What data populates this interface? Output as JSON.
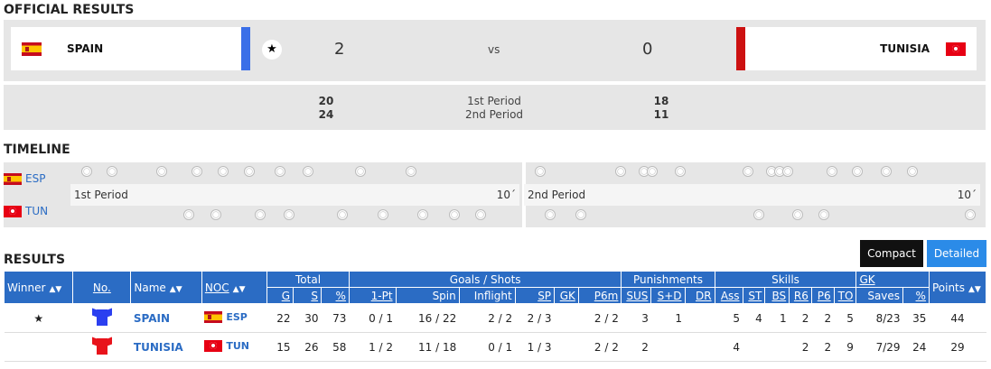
{
  "official_results": {
    "title": "OFFICIAL RESULTS",
    "home": {
      "name": "SPAIN",
      "score": "2",
      "bar_color": "#3a6fe8"
    },
    "away": {
      "name": "TUNISIA",
      "score": "0",
      "bar_color": "#cc1111"
    },
    "vs": "vs",
    "winner_icon": "star-icon",
    "periods": [
      {
        "label": "1st Period",
        "home": "20",
        "away": "18"
      },
      {
        "label": "2nd Period",
        "home": "24",
        "away": "11"
      }
    ]
  },
  "timeline": {
    "title": "TIMELINE",
    "home_code": "ESP",
    "away_code": "TUN",
    "period1_label": "1st Period",
    "period1_time": "10´",
    "period2_label": "2nd Period",
    "period2_time": "10´",
    "icon": "ball-icon"
  },
  "results": {
    "title": "RESULTS",
    "compact_label": "Compact",
    "detailed_label": "Detailed",
    "headers": {
      "winner": "Winner",
      "no": "No.",
      "name": "Name",
      "noc": "NOC",
      "total": "Total",
      "goals_shots": "Goals / Shots",
      "punishments": "Punishments",
      "skills": "Skills",
      "gk": "GK",
      "points": "Points",
      "g": "G",
      "s": "S",
      "pct": "%",
      "one_pt": "1-Pt",
      "spin": "Spin",
      "inflight": "Inflight",
      "sp": "SP",
      "gk2": "GK",
      "p6m": "P6m",
      "sus": "SUS",
      "sd": "S+D",
      "dr": "DR",
      "ass": "Ass",
      "st": "ST",
      "bs": "BS",
      "r6": "R6",
      "p6": "P6",
      "to": "TO",
      "saves": "Saves",
      "gkpct": "%"
    },
    "rows": [
      {
        "winner": "★",
        "jersey_color": "#2b3ff0",
        "name": "SPAIN",
        "noc": "ESP",
        "g": "22",
        "s": "30",
        "pct": "73",
        "one_pt": "0 / 1",
        "spin": "16 / 22",
        "inflight": "2 / 2",
        "sp": "2 / 3",
        "gk": "",
        "p6m": "2 / 2",
        "sus": "3",
        "sd": "1",
        "dr": "",
        "ass": "5",
        "st": "4",
        "bs": "1",
        "r6": "2",
        "p6": "2",
        "to": "5",
        "saves": "8/23",
        "gkpct": "35",
        "points": "44"
      },
      {
        "winner": "",
        "jersey_color": "#e8131b",
        "name": "TUNISIA",
        "noc": "TUN",
        "g": "15",
        "s": "26",
        "pct": "58",
        "one_pt": "1 / 2",
        "spin": "11 / 18",
        "inflight": "0 / 1",
        "sp": "1 / 3",
        "gk": "",
        "p6m": "2 / 2",
        "sus": "2",
        "sd": "",
        "dr": "",
        "ass": "4",
        "st": "",
        "bs": "",
        "r6": "2",
        "p6": "2",
        "to": "9",
        "saves": "7/29",
        "gkpct": "24",
        "points": "29"
      }
    ]
  }
}
